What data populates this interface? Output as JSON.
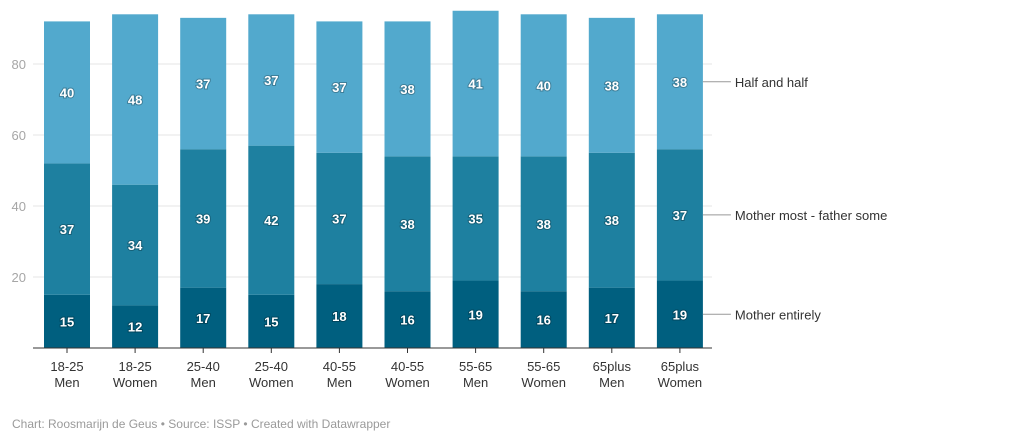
{
  "chart_data": {
    "type": "bar",
    "stacked": true,
    "title": "",
    "xlabel": "",
    "ylabel": "",
    "ylim": [
      0,
      95
    ],
    "y_ticks": [
      20,
      40,
      60,
      80
    ],
    "grid": true,
    "legend_placement": "right (direct labels)",
    "categories": [
      [
        "18-25",
        "Men"
      ],
      [
        "18-25",
        "Women"
      ],
      [
        "25-40",
        "Men"
      ],
      [
        "25-40",
        "Women"
      ],
      [
        "40-55",
        "Men"
      ],
      [
        "40-55",
        "Women"
      ],
      [
        "55-65",
        "Men"
      ],
      [
        "55-65",
        "Women"
      ],
      [
        "65plus",
        "Men"
      ],
      [
        "65plus",
        "Women"
      ]
    ],
    "series": [
      {
        "name": "Mother entirely",
        "color": "#005f7f",
        "values": [
          15,
          12,
          17,
          15,
          18,
          16,
          19,
          16,
          17,
          19
        ]
      },
      {
        "name": "Mother most - father some",
        "color": "#1e80a0",
        "values": [
          37,
          34,
          39,
          42,
          37,
          38,
          35,
          38,
          38,
          37
        ]
      },
      {
        "name": "Half and half",
        "color": "#52a9cd",
        "values": [
          40,
          48,
          37,
          37,
          37,
          38,
          41,
          40,
          38,
          38
        ]
      }
    ]
  },
  "footer": {
    "text": "Chart: Roosmarijn de Geus • Source: ISSP • Created with Datawrapper"
  }
}
